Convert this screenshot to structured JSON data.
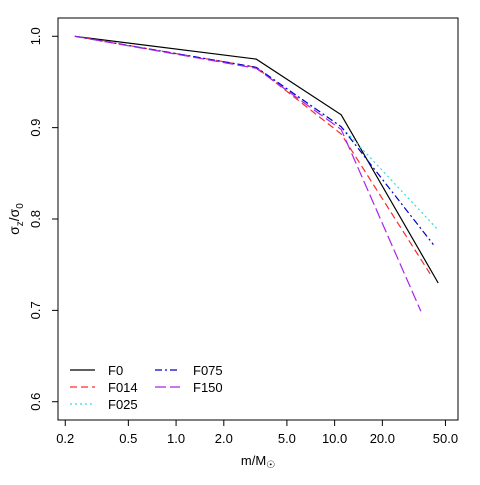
{
  "chart_data": {
    "type": "line",
    "xlabel": "m/M☉",
    "ylabel": "σz/σ0",
    "xscale": "log",
    "xlim": [
      0.18,
      60
    ],
    "ylim": [
      0.58,
      1.02
    ],
    "xticks": [
      0.2,
      0.5,
      1.0,
      2.0,
      5.0,
      10.0,
      20.0,
      50.0
    ],
    "xtick_labels": [
      "0.2",
      "0.5",
      "1.0",
      "2.0",
      "5.0",
      "10.0",
      "20.0",
      "50.0"
    ],
    "yticks": [
      0.6,
      0.7,
      0.8,
      0.9,
      1.0
    ],
    "ytick_labels": [
      "0.6",
      "0.7",
      "0.8",
      "0.9",
      "1.0"
    ],
    "grid": false,
    "legend_position": "bottom-left",
    "series": [
      {
        "name": "F0",
        "color": "#000000",
        "dash": "solid",
        "x": [
          0.23,
          3.2,
          11.0,
          45.0
        ],
        "y": [
          1.0,
          0.975,
          0.914,
          0.73
        ]
      },
      {
        "name": "F014",
        "color": "#ff2a2a",
        "dash": "dashed",
        "x": [
          0.23,
          3.2,
          11.0,
          40.0
        ],
        "y": [
          1.0,
          0.966,
          0.893,
          0.74
        ]
      },
      {
        "name": "F025",
        "color": "#33dddd",
        "dash": "dotted",
        "x": [
          0.23,
          3.2,
          11.0,
          45.0
        ],
        "y": [
          1.0,
          0.966,
          0.901,
          0.788
        ]
      },
      {
        "name": "F075",
        "color": "#0000cc",
        "dash": "dashdot",
        "x": [
          0.23,
          3.2,
          11.0,
          42.0
        ],
        "y": [
          1.0,
          0.966,
          0.901,
          0.772
        ]
      },
      {
        "name": "F150",
        "color": "#aa22ee",
        "dash": "longdash",
        "x": [
          0.23,
          3.2,
          11.0,
          35.0
        ],
        "y": [
          1.0,
          0.965,
          0.898,
          0.699
        ]
      }
    ]
  }
}
